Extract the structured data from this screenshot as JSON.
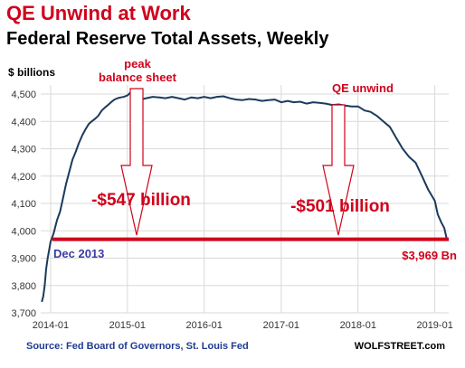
{
  "title": "QE Unwind at Work",
  "subtitle": "Federal Reserve Total Assets, Weekly",
  "ylabel": "$ billions",
  "source": "Source: Fed Board of Governors, St. Louis Fed",
  "brand": "WOLFSTREET.com",
  "colors": {
    "title": "#d0021b",
    "line": "#1b3a5c",
    "accent": "#d0021b",
    "note": "#3a3aa8",
    "grid": "#d9d9d9"
  },
  "annotations": {
    "peak_1": "peak",
    "peak_2": "balance sheet",
    "qe_unwind": "QE unwind",
    "drop_1": "-$547 billion",
    "drop_2": "-$501 billion",
    "baseline_left": "Dec 2013",
    "baseline_right": "$3,969 Bn"
  },
  "chart_data": {
    "type": "line",
    "title": "Federal Reserve Total Assets, Weekly",
    "ylabel": "$ billions",
    "xlabel": "",
    "ylim": [
      3700,
      4520
    ],
    "xlim": [
      "2013-11-15",
      "2019-03-08"
    ],
    "yticks": [
      3700,
      3800,
      3900,
      4000,
      4100,
      4200,
      4300,
      4400,
      4500
    ],
    "ytick_labels": [
      "3,700",
      "3,800",
      "3,900",
      "4,000",
      "4,100",
      "4,200",
      "4,300",
      "4,400",
      "4,500"
    ],
    "xticks": [
      "2014-01-01",
      "2015-01-01",
      "2016-01-01",
      "2017-01-01",
      "2018-01-01",
      "2019-01-01"
    ],
    "xtick_labels": [
      "2014-01",
      "2015-01",
      "2016-01",
      "2017-01",
      "2018-01",
      "2019-01"
    ],
    "grid": true,
    "legend": "none",
    "baseline_value": 3969,
    "series": [
      {
        "x": [
          "2013-11-20",
          "2013-11-27",
          "2013-12-04",
          "2013-12-11",
          "2013-12-18",
          "2013-12-25",
          "2014-01-01",
          "2014-01-15",
          "2014-02-01",
          "2014-02-15",
          "2014-03-01",
          "2014-03-15",
          "2014-04-01",
          "2014-04-15",
          "2014-05-01",
          "2014-05-15",
          "2014-06-01",
          "2014-06-15",
          "2014-07-01",
          "2014-07-15",
          "2014-08-01",
          "2014-08-15",
          "2014-09-01",
          "2014-09-15",
          "2014-10-01",
          "2014-10-15",
          "2014-11-01",
          "2014-11-15",
          "2014-12-01",
          "2014-12-15",
          "2015-01-01",
          "2015-01-15",
          "2015-02-01",
          "2015-03-01",
          "2015-04-01",
          "2015-05-01",
          "2015-06-01",
          "2015-07-01",
          "2015-08-01",
          "2015-09-01",
          "2015-10-01",
          "2015-11-01",
          "2015-12-01",
          "2016-01-01",
          "2016-02-01",
          "2016-03-01",
          "2016-04-01",
          "2016-05-01",
          "2016-06-01",
          "2016-07-01",
          "2016-08-01",
          "2016-09-01",
          "2016-10-01",
          "2016-11-01",
          "2016-12-01",
          "2017-01-01",
          "2017-02-01",
          "2017-03-01",
          "2017-04-01",
          "2017-05-01",
          "2017-06-01",
          "2017-07-01",
          "2017-08-01",
          "2017-09-01",
          "2017-10-01",
          "2017-11-01",
          "2017-12-01",
          "2018-01-01",
          "2018-02-01",
          "2018-03-01",
          "2018-04-01",
          "2018-05-01",
          "2018-06-01",
          "2018-07-01",
          "2018-08-01",
          "2018-09-01",
          "2018-10-01",
          "2018-11-01",
          "2018-12-01",
          "2019-01-01",
          "2019-01-15",
          "2019-02-01",
          "2019-02-15",
          "2019-02-27"
        ],
        "values": [
          3740,
          3760,
          3800,
          3860,
          3900,
          3930,
          3960,
          3990,
          4040,
          4070,
          4120,
          4170,
          4220,
          4260,
          4290,
          4320,
          4350,
          4370,
          4390,
          4400,
          4410,
          4420,
          4440,
          4450,
          4460,
          4470,
          4480,
          4485,
          4488,
          4490,
          4495,
          4505,
          4490,
          4480,
          4485,
          4490,
          4488,
          4485,
          4490,
          4485,
          4480,
          4488,
          4485,
          4490,
          4485,
          4490,
          4492,
          4485,
          4480,
          4478,
          4482,
          4480,
          4475,
          4478,
          4480,
          4470,
          4475,
          4470,
          4472,
          4465,
          4470,
          4468,
          4465,
          4460,
          4462,
          4458,
          4455,
          4455,
          4440,
          4435,
          4420,
          4400,
          4380,
          4340,
          4300,
          4270,
          4250,
          4200,
          4150,
          4110,
          4060,
          4030,
          4010,
          3969
        ]
      }
    ]
  }
}
